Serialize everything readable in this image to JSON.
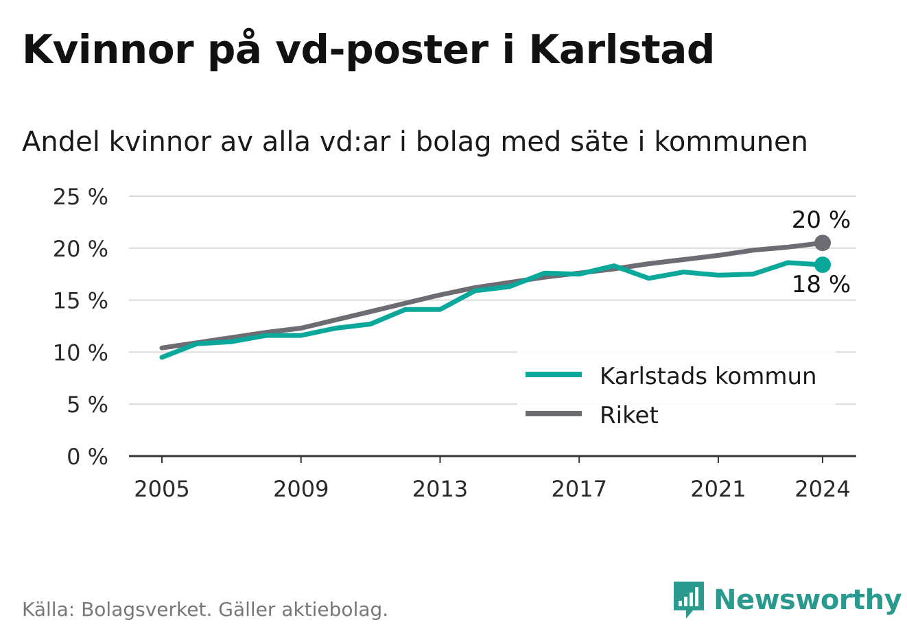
{
  "title": "Kvinnor på vd-poster i Karlstad",
  "subtitle": "Andel kvinnor av alla vd:ar i bolag med säte i kommunen",
  "source": "Källa: Bolagsverket. Gäller aktiebolag.",
  "brand": "Newsworthy",
  "chart_data": {
    "type": "line",
    "x": [
      2005,
      2006,
      2007,
      2008,
      2009,
      2010,
      2011,
      2012,
      2013,
      2014,
      2015,
      2016,
      2017,
      2018,
      2019,
      2020,
      2021,
      2022,
      2023,
      2024
    ],
    "x_ticks": [
      "2005",
      "2009",
      "2013",
      "2017",
      "2021",
      "2024"
    ],
    "y_ticks": [
      "0 %",
      "5 %",
      "10 %",
      "15 %",
      "20 %",
      "25 %"
    ],
    "ylim": [
      0,
      25
    ],
    "grid": true,
    "legend_position": "bottom-right",
    "series": [
      {
        "name": "Karlstads kommun",
        "color": "#0aa89a",
        "values": [
          9.5,
          10.8,
          11.0,
          11.6,
          11.6,
          12.3,
          12.7,
          14.1,
          14.1,
          15.9,
          16.3,
          17.6,
          17.5,
          18.3,
          17.1,
          17.7,
          17.4,
          17.5,
          18.6,
          18.4
        ],
        "end_label": "18 %"
      },
      {
        "name": "Riket",
        "color": "#6d6c72",
        "values": [
          10.4,
          10.9,
          11.4,
          11.9,
          12.3,
          13.1,
          13.9,
          14.7,
          15.5,
          16.2,
          16.7,
          17.2,
          17.6,
          18.0,
          18.5,
          18.9,
          19.3,
          19.8,
          20.1,
          20.5
        ],
        "end_label": "20 %"
      }
    ]
  }
}
